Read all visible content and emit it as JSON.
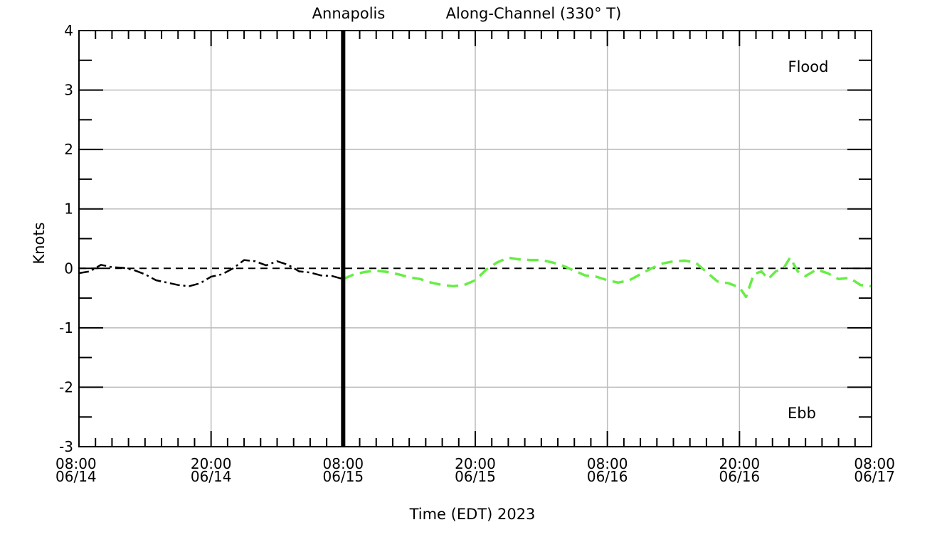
{
  "chart_data": {
    "type": "line",
    "title_station": "Annapolis",
    "title_component": "Along-Channel (330° T)",
    "xlabel": "Time (EDT) 2023",
    "ylabel": "Knots",
    "ylim": [
      -3,
      4
    ],
    "yticks": [
      -3,
      -2,
      -1,
      0,
      1,
      2,
      3,
      4
    ],
    "ytick_labels": [
      "-3",
      "-2",
      "-1",
      "0",
      "1",
      "2",
      "3",
      "4"
    ],
    "xlim_hours": [
      0,
      72
    ],
    "xticks": [
      {
        "hour": 0,
        "time": "08:00",
        "date": "06/14"
      },
      {
        "hour": 12,
        "time": "20:00",
        "date": "06/14"
      },
      {
        "hour": 24,
        "time": "08:00",
        "date": "06/15"
      },
      {
        "hour": 36,
        "time": "20:00",
        "date": "06/15"
      },
      {
        "hour": 48,
        "time": "08:00",
        "date": "06/16"
      },
      {
        "hour": 60,
        "time": "20:00",
        "date": "06/16"
      },
      {
        "hour": 72,
        "time": "08:00",
        "date": "06/17"
      }
    ],
    "grid": true,
    "now_marker_hour": 24,
    "annotations": {
      "flood": "Flood",
      "ebb": "Ebb"
    },
    "series": [
      {
        "style": "dash-dot",
        "color": "#000000",
        "points": [
          [
            0.0,
            -0.08
          ],
          [
            1.0,
            -0.05
          ],
          [
            2.0,
            0.06
          ],
          [
            3.0,
            0.02
          ],
          [
            4.0,
            0.01
          ],
          [
            5.0,
            -0.03
          ],
          [
            6.0,
            -0.1
          ],
          [
            7.0,
            -0.2
          ],
          [
            8.0,
            -0.24
          ],
          [
            9.0,
            -0.28
          ],
          [
            10.0,
            -0.3
          ],
          [
            11.0,
            -0.25
          ],
          [
            12.0,
            -0.14
          ],
          [
            13.0,
            -0.1
          ],
          [
            14.0,
            0.0
          ],
          [
            15.0,
            0.14
          ],
          [
            16.0,
            0.12
          ],
          [
            17.0,
            0.05
          ],
          [
            18.0,
            0.12
          ],
          [
            19.0,
            0.06
          ],
          [
            20.0,
            -0.05
          ],
          [
            21.0,
            -0.07
          ],
          [
            22.0,
            -0.12
          ],
          [
            23.0,
            -0.13
          ],
          [
            24.0,
            -0.18
          ]
        ]
      },
      {
        "style": "dashed",
        "color": "#66ee44",
        "points": [
          [
            24.0,
            -0.18
          ],
          [
            25.0,
            -0.1
          ],
          [
            26.0,
            -0.06
          ],
          [
            27.0,
            -0.04
          ],
          [
            28.0,
            -0.06
          ],
          [
            29.0,
            -0.1
          ],
          [
            30.0,
            -0.15
          ],
          [
            31.0,
            -0.18
          ],
          [
            32.0,
            -0.24
          ],
          [
            33.0,
            -0.28
          ],
          [
            34.0,
            -0.3
          ],
          [
            35.0,
            -0.28
          ],
          [
            36.0,
            -0.2
          ],
          [
            37.0,
            -0.02
          ],
          [
            38.0,
            0.1
          ],
          [
            39.0,
            0.18
          ],
          [
            40.0,
            0.15
          ],
          [
            41.0,
            0.14
          ],
          [
            42.0,
            0.14
          ],
          [
            43.0,
            0.1
          ],
          [
            44.0,
            0.04
          ],
          [
            45.0,
            -0.04
          ],
          [
            46.0,
            -0.12
          ],
          [
            47.0,
            -0.14
          ],
          [
            48.0,
            -0.2
          ],
          [
            49.0,
            -0.24
          ],
          [
            50.0,
            -0.2
          ],
          [
            51.0,
            -0.1
          ],
          [
            52.0,
            0.0
          ],
          [
            53.0,
            0.08
          ],
          [
            54.0,
            0.12
          ],
          [
            55.0,
            0.13
          ],
          [
            56.0,
            0.1
          ],
          [
            57.0,
            -0.06
          ],
          [
            58.0,
            -0.22
          ],
          [
            59.0,
            -0.25
          ],
          [
            60.0,
            -0.32
          ],
          [
            60.6,
            -0.48
          ],
          [
            61.3,
            -0.1
          ],
          [
            62.0,
            -0.05
          ],
          [
            62.6,
            -0.18
          ],
          [
            63.3,
            -0.05
          ],
          [
            64.0,
            0.0
          ],
          [
            64.6,
            0.18
          ],
          [
            65.3,
            -0.05
          ],
          [
            66.0,
            -0.13
          ],
          [
            67.0,
            -0.02
          ],
          [
            68.0,
            -0.08
          ],
          [
            69.0,
            -0.18
          ],
          [
            70.0,
            -0.16
          ],
          [
            71.0,
            -0.28
          ],
          [
            72.0,
            -0.3
          ]
        ]
      }
    ]
  }
}
